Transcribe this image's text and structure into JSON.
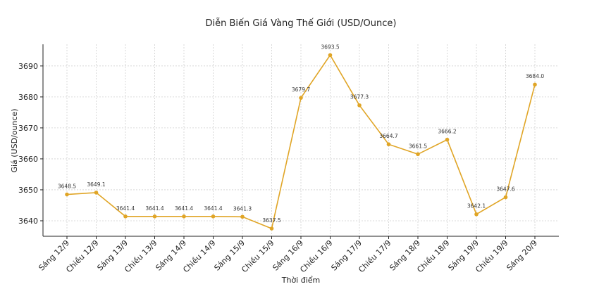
{
  "chart_data": {
    "type": "line",
    "title": "Diễn Biến Giá Vàng Thế Giới (USD/Ounce)",
    "xlabel": "Thời điểm",
    "ylabel": "Giá (USD/ounce)",
    "categories": [
      "Sáng 12/9",
      "Chiều 12/9",
      "Sáng 13/9",
      "Chiều 13/9",
      "Sáng 14/9",
      "Chiều 14/9",
      "Sáng 15/9",
      "Chiều 15/9",
      "Sáng 16/9",
      "Chiều 16/9",
      "Sáng 17/9",
      "Chiều 17/9",
      "Sáng 18/9",
      "Chiều 18/9",
      "Sáng 19/9",
      "Chiều 19/9",
      "Sáng 20/9"
    ],
    "values": [
      3648.5,
      3649.1,
      3641.4,
      3641.4,
      3641.4,
      3641.4,
      3641.3,
      3637.5,
      3679.7,
      3693.5,
      3677.3,
      3664.7,
      3661.5,
      3666.2,
      3642.1,
      3647.6,
      3684.0
    ],
    "data_labels": [
      "3648.5",
      "3649.1",
      "3641.4",
      "3641.4",
      "3641.4",
      "3641.4",
      "3641.3",
      "3637.5",
      "3679.7",
      "3693.5",
      "3677.3",
      "3664.7",
      "3661.5",
      "3666.2",
      "3642.1",
      "3647.6",
      "3684.0"
    ],
    "yticks": [
      3640,
      3650,
      3660,
      3670,
      3680,
      3690
    ],
    "ylim": [
      3635,
      3697
    ],
    "grid": true,
    "line_color": "#e0a526"
  }
}
